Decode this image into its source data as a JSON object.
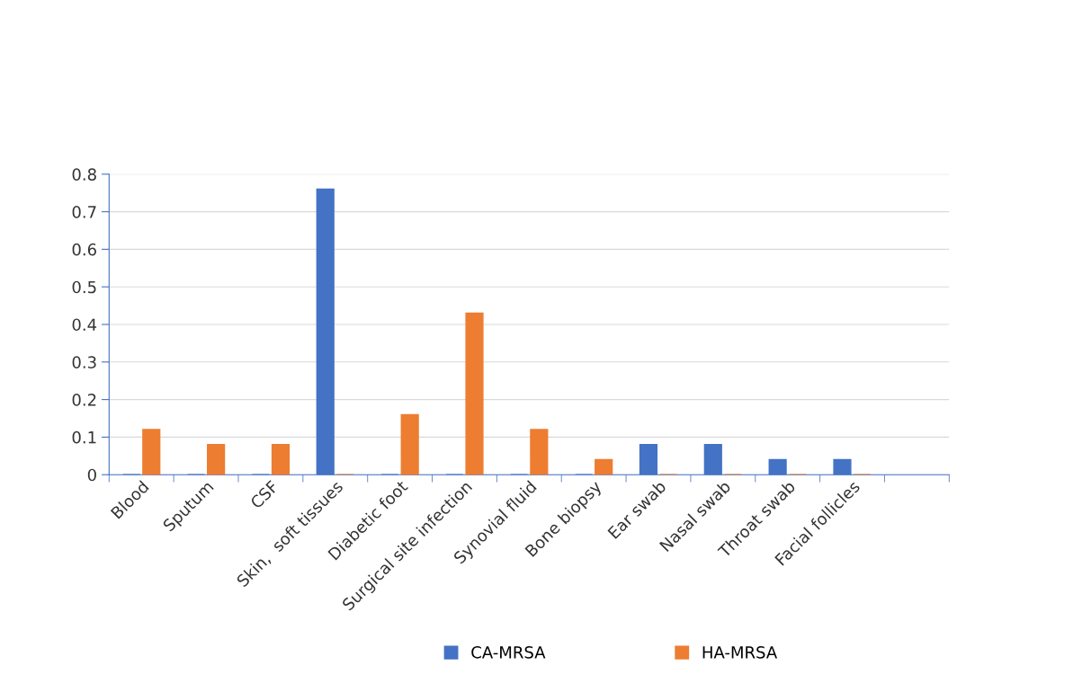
{
  "chart_data": {
    "type": "bar",
    "categories": [
      "Blood",
      "Sputum",
      "CSF",
      "Skin,  soft tissues",
      "Diabetic foot",
      "Surgical site infection",
      "Synovial fluid",
      "Bone biopsy",
      "Ear swab",
      "Nasal swab",
      "Throat swab",
      "Facial follicles",
      null
    ],
    "series": [
      {
        "name": "CA-MRSA",
        "color": "#4472c4",
        "values": [
          0,
          0,
          0,
          0.76,
          0,
          0,
          0,
          0,
          0.08,
          0.08,
          0.04,
          0.04,
          null
        ]
      },
      {
        "name": "HA-MRSA",
        "color": "#ed7d31",
        "values": [
          0.12,
          0.08,
          0.08,
          0,
          0.16,
          0.43,
          0.12,
          0.04,
          0,
          0,
          0,
          0,
          null
        ]
      }
    ],
    "ylim": [
      0,
      0.8
    ],
    "yticks": [
      0,
      0.1,
      0.2,
      0.3,
      0.4,
      0.5,
      0.6,
      0.7,
      0.8
    ],
    "grid": "y",
    "legend": "bottom"
  }
}
